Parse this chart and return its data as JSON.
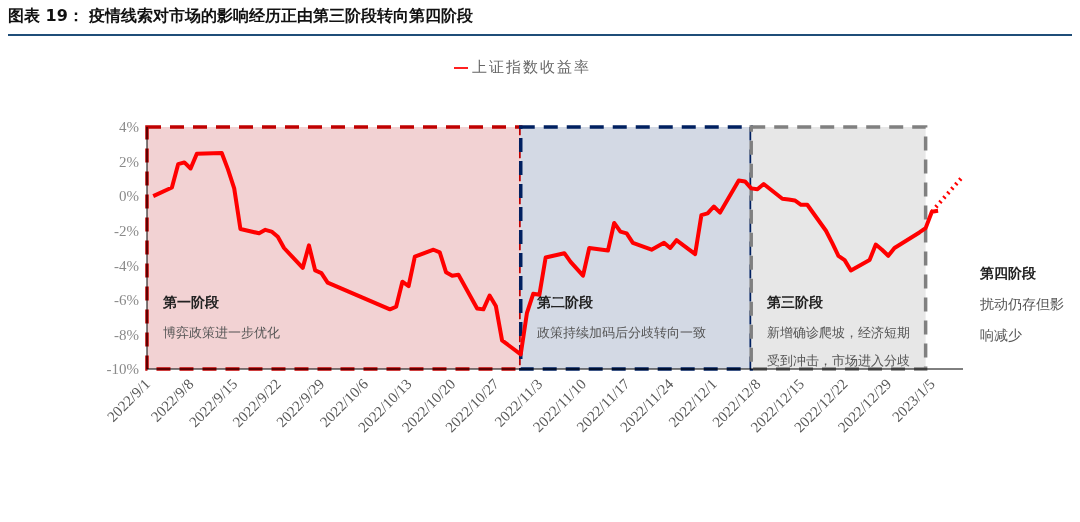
{
  "chart_data": {
    "type": "line",
    "title": "图表 19：  疫情线索对市场的影响经历正由第三阶段转向第四阶段",
    "series": [
      {
        "name": "上证指数收益率",
        "color": "#ff0000",
        "line_style": "solid",
        "x": [
          "2022-09-02",
          "2022-09-05",
          "2022-09-06",
          "2022-09-07",
          "2022-09-08",
          "2022-09-09",
          "2022-09-13",
          "2022-09-14",
          "2022-09-15",
          "2022-09-16",
          "2022-09-19",
          "2022-09-20",
          "2022-09-21",
          "2022-09-22",
          "2022-09-23",
          "2022-09-26",
          "2022-09-27",
          "2022-09-28",
          "2022-09-29",
          "2022-09-30",
          "2022-10-10",
          "2022-10-11",
          "2022-10-12",
          "2022-10-13",
          "2022-10-14",
          "2022-10-17",
          "2022-10-18",
          "2022-10-19",
          "2022-10-20",
          "2022-10-21",
          "2022-10-24",
          "2022-10-25",
          "2022-10-26",
          "2022-10-27",
          "2022-10-28",
          "2022-10-31",
          "2022-11-01",
          "2022-11-02",
          "2022-11-03",
          "2022-11-04",
          "2022-11-07",
          "2022-11-08",
          "2022-11-10",
          "2022-11-11",
          "2022-11-14",
          "2022-11-15",
          "2022-11-16",
          "2022-11-17",
          "2022-11-18",
          "2022-11-21",
          "2022-11-23",
          "2022-11-24",
          "2022-11-25",
          "2022-11-28",
          "2022-11-29",
          "2022-11-30",
          "2022-12-01",
          "2022-12-02",
          "2022-12-05",
          "2022-12-06",
          "2022-12-07",
          "2022-12-08",
          "2022-12-09",
          "2022-12-12",
          "2022-12-13",
          "2022-12-14",
          "2022-12-15",
          "2022-12-16",
          "2022-12-19",
          "2022-12-20",
          "2022-12-21",
          "2022-12-22",
          "2022-12-23",
          "2022-12-26",
          "2022-12-27",
          "2022-12-28",
          "2022-12-29",
          "2022-12-30",
          "2023-01-03",
          "2023-01-04",
          "2023-01-05",
          "2023-01-06"
        ],
        "values": [
          0,
          0.5,
          1.85,
          1.95,
          1.6,
          2.45,
          2.5,
          1.55,
          0.45,
          -1.9,
          -2.15,
          -1.95,
          -2.05,
          -2.35,
          -3,
          -4.15,
          -2.85,
          -4.3,
          -4.45,
          -5,
          -6.55,
          -6.4,
          -4.95,
          -5.2,
          -3.5,
          -3.1,
          -3.25,
          -4.4,
          -4.6,
          -4.55,
          -6.5,
          -6.55,
          -5.75,
          -6.35,
          -8.35,
          -9.15,
          -6.75,
          -5.65,
          -5.7,
          -3.55,
          -3.3,
          -3.8,
          -4.6,
          -3,
          -3.15,
          -1.55,
          -2.05,
          -2.15,
          -2.7,
          -3.1,
          -2.7,
          -3,
          -2.55,
          -3.35,
          -1.1,
          -1,
          -0.6,
          -0.95,
          0.9,
          0.85,
          0.45,
          0.4,
          0.7,
          -0.15,
          -0.2,
          -0.25,
          -0.5,
          -0.5,
          -2,
          -2.7,
          -3.45,
          -3.7,
          -4.3,
          -3.7,
          -2.8,
          -3.1,
          -3.45,
          -3,
          -2.1,
          -1.85,
          -0.9,
          -0.85
        ]
      },
      {
        "color": "#ff0000",
        "line_style": "dotted",
        "x": [
          "2023-01-05",
          "2023-01-10"
        ],
        "values": [
          -0.9,
          1.15
        ]
      }
    ],
    "xlim": [
      "2022-09-01",
      "2023-01-10"
    ],
    "xticks": [
      {
        "value": "2022-09-01",
        "label": "2022/9/1"
      },
      {
        "value": "2022-09-08",
        "label": "2022/9/8"
      },
      {
        "value": "2022-09-15",
        "label": "2022/9/15"
      },
      {
        "value": "2022-09-22",
        "label": "2022/9/22"
      },
      {
        "value": "2022-09-29",
        "label": "2022/9/29"
      },
      {
        "value": "2022-10-06",
        "label": "2022/10/6"
      },
      {
        "value": "2022-10-13",
        "label": "2022/10/13"
      },
      {
        "value": "2022-10-20",
        "label": "2022/10/20"
      },
      {
        "value": "2022-10-27",
        "label": "2022/10/27"
      },
      {
        "value": "2022-11-03",
        "label": "2022/11/3"
      },
      {
        "value": "2022-11-10",
        "label": "2022/11/10"
      },
      {
        "value": "2022-11-17",
        "label": "2022/11/17"
      },
      {
        "value": "2022-11-24",
        "label": "2022/11/24"
      },
      {
        "value": "2022-12-01",
        "label": "2022/12/1"
      },
      {
        "value": "2022-12-08",
        "label": "2022/12/8"
      },
      {
        "value": "2022-12-15",
        "label": "2022/12/15"
      },
      {
        "value": "2022-12-22",
        "label": "2022/12/22"
      },
      {
        "value": "2022-12-29",
        "label": "2022/12/29"
      },
      {
        "value": "2023-01-05",
        "label": "2023/1/5"
      }
    ],
    "ylim": [
      -10,
      4
    ],
    "yticks": [
      {
        "value": -10,
        "label": "-10%"
      },
      {
        "value": -8,
        "label": "-8%"
      },
      {
        "value": -6,
        "label": "-6%"
      },
      {
        "value": -4,
        "label": "-4%"
      },
      {
        "value": -2,
        "label": "-2%"
      },
      {
        "value": 0,
        "label": "0%"
      },
      {
        "value": 2,
        "label": "2%"
      },
      {
        "value": 4,
        "label": "4%"
      }
    ],
    "bands": [
      {
        "axis": "x",
        "from": "2022-09-01",
        "to": "2022-10-31",
        "label": "第一阶段",
        "color": "#c00000"
      },
      {
        "axis": "x",
        "from": "2022-10-31",
        "to": "2022-12-07",
        "label": "第二阶段",
        "color": "#002060"
      },
      {
        "axis": "x",
        "from": "2022-12-07",
        "to": "2023-01-04",
        "label": "第三阶段",
        "color": "#808080"
      }
    ],
    "annotations": [
      "博弈政策进一步优化",
      "政策持续加码后分歧转向一致",
      "新增确诊爬坡，经济短期受到冲击，市场进入分歧",
      "第四阶段",
      "扰动仍存但影响减少"
    ],
    "grid": false,
    "legend": "top",
    "marker": "none"
  }
}
